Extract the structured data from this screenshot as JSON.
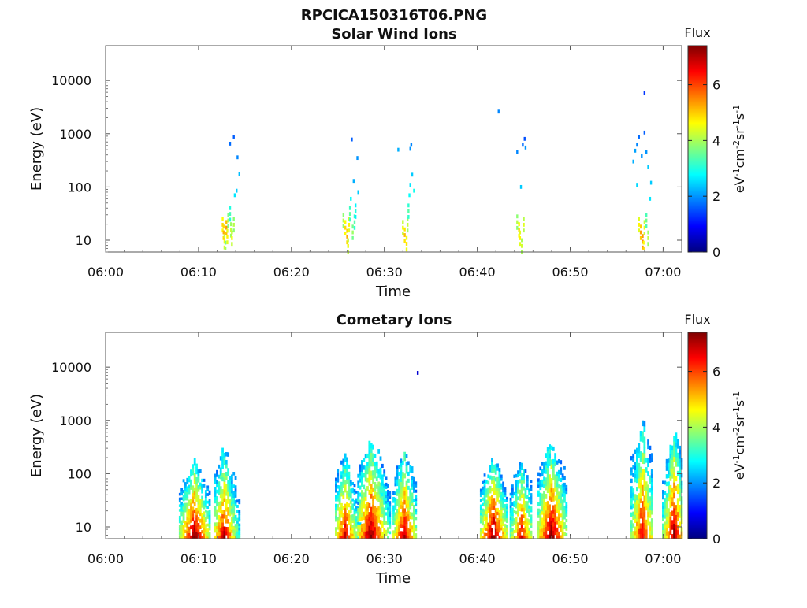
{
  "figure_title": "RPCICA150316T06.PNG",
  "chart_data": [
    {
      "type": "heatmap",
      "title": "Solar Wind Ions",
      "xlabel": "Time",
      "ylabel": "Energy (eV)",
      "xlim": [
        "06:00",
        "07:02"
      ],
      "ylim": [
        6,
        45000
      ],
      "yscale": "log",
      "x_ticks": [
        "06:00",
        "06:10",
        "06:20",
        "06:30",
        "06:40",
        "06:50",
        "07:00"
      ],
      "y_ticks": [
        "10",
        "100",
        "1000",
        "10000"
      ],
      "colorbar": {
        "label": "Flux",
        "unit": "eV-1cm-2sr-1s-1",
        "range": [
          0,
          7.4
        ],
        "ticks": [
          "0",
          "2",
          "4",
          "6"
        ],
        "colormap": "jet"
      },
      "points": [
        {
          "t": 12.6,
          "e": 25,
          "v": 4.6
        },
        {
          "t": 12.7,
          "e": 18,
          "v": 4.9
        },
        {
          "t": 12.8,
          "e": 12,
          "v": 4.3
        },
        {
          "t": 12.9,
          "e": 9,
          "v": 3.6
        },
        {
          "t": 13.0,
          "e": 22,
          "v": 5.1
        },
        {
          "t": 13.1,
          "e": 15,
          "v": 4.4
        },
        {
          "t": 13.2,
          "e": 30,
          "v": 3.7
        },
        {
          "t": 13.4,
          "e": 40,
          "v": 3.0
        },
        {
          "t": 13.5,
          "e": 20,
          "v": 3.9
        },
        {
          "t": 13.6,
          "e": 14,
          "v": 4.2
        },
        {
          "t": 13.8,
          "e": 25,
          "v": 3.8
        },
        {
          "t": 13.9,
          "e": 70,
          "v": 2.6
        },
        {
          "t": 14.1,
          "e": 85,
          "v": 2.4
        },
        {
          "t": 13.4,
          "e": 650,
          "v": 1.7
        },
        {
          "t": 13.8,
          "e": 880,
          "v": 1.6
        },
        {
          "t": 14.2,
          "e": 360,
          "v": 1.9
        },
        {
          "t": 14.4,
          "e": 175,
          "v": 2.3
        },
        {
          "t": 25.6,
          "e": 30,
          "v": 3.8
        },
        {
          "t": 25.8,
          "e": 22,
          "v": 4.6
        },
        {
          "t": 26.0,
          "e": 15,
          "v": 4.9
        },
        {
          "t": 26.1,
          "e": 10,
          "v": 4.2
        },
        {
          "t": 26.2,
          "e": 25,
          "v": 4.4
        },
        {
          "t": 26.3,
          "e": 40,
          "v": 3.2
        },
        {
          "t": 26.4,
          "e": 60,
          "v": 2.8
        },
        {
          "t": 26.6,
          "e": 18,
          "v": 3.6
        },
        {
          "t": 26.8,
          "e": 28,
          "v": 3.1
        },
        {
          "t": 26.9,
          "e": 45,
          "v": 2.7
        },
        {
          "t": 26.5,
          "e": 780,
          "v": 1.6
        },
        {
          "t": 26.7,
          "e": 130,
          "v": 2.2
        },
        {
          "t": 27.1,
          "e": 350,
          "v": 2.0
        },
        {
          "t": 27.2,
          "e": 80,
          "v": 2.4
        },
        {
          "t": 32.0,
          "e": 22,
          "v": 4.2
        },
        {
          "t": 32.2,
          "e": 16,
          "v": 4.8
        },
        {
          "t": 32.4,
          "e": 11,
          "v": 4.5
        },
        {
          "t": 32.5,
          "e": 25,
          "v": 3.9
        },
        {
          "t": 32.6,
          "e": 45,
          "v": 3.1
        },
        {
          "t": 32.7,
          "e": 70,
          "v": 2.8
        },
        {
          "t": 32.8,
          "e": 110,
          "v": 2.6
        },
        {
          "t": 33.0,
          "e": 170,
          "v": 2.4
        },
        {
          "t": 33.2,
          "e": 85,
          "v": 2.9
        },
        {
          "t": 32.8,
          "e": 520,
          "v": 2.0
        },
        {
          "t": 32.9,
          "e": 620,
          "v": 1.9
        },
        {
          "t": 31.5,
          "e": 500,
          "v": 2.2
        },
        {
          "t": 42.3,
          "e": 2600,
          "v": 1.9
        },
        {
          "t": 44.3,
          "e": 28,
          "v": 3.8
        },
        {
          "t": 44.5,
          "e": 20,
          "v": 4.6
        },
        {
          "t": 44.6,
          "e": 14,
          "v": 4.4
        },
        {
          "t": 44.8,
          "e": 10,
          "v": 4.0
        },
        {
          "t": 45.0,
          "e": 25,
          "v": 4.1
        },
        {
          "t": 44.7,
          "e": 100,
          "v": 2.4
        },
        {
          "t": 44.3,
          "e": 450,
          "v": 1.9
        },
        {
          "t": 44.9,
          "e": 620,
          "v": 1.7
        },
        {
          "t": 45.1,
          "e": 800,
          "v": 1.5
        },
        {
          "t": 45.2,
          "e": 550,
          "v": 2.0
        },
        {
          "t": 57.4,
          "e": 25,
          "v": 4.4
        },
        {
          "t": 57.6,
          "e": 18,
          "v": 5.0
        },
        {
          "t": 57.8,
          "e": 12,
          "v": 5.4
        },
        {
          "t": 57.9,
          "e": 9,
          "v": 4.6
        },
        {
          "t": 58.0,
          "e": 22,
          "v": 4.2
        },
        {
          "t": 58.2,
          "e": 30,
          "v": 3.3
        },
        {
          "t": 58.4,
          "e": 14,
          "v": 3.9
        },
        {
          "t": 58.6,
          "e": 60,
          "v": 2.6
        },
        {
          "t": 58.7,
          "e": 120,
          "v": 2.4
        },
        {
          "t": 56.8,
          "e": 300,
          "v": 2.2
        },
        {
          "t": 57.0,
          "e": 480,
          "v": 2.1
        },
        {
          "t": 57.2,
          "e": 620,
          "v": 1.9
        },
        {
          "t": 57.4,
          "e": 880,
          "v": 1.7
        },
        {
          "t": 57.7,
          "e": 380,
          "v": 2.0
        },
        {
          "t": 58.0,
          "e": 1050,
          "v": 1.6
        },
        {
          "t": 58.2,
          "e": 460,
          "v": 2.0
        },
        {
          "t": 58.4,
          "e": 240,
          "v": 2.4
        },
        {
          "t": 57.2,
          "e": 110,
          "v": 2.5
        },
        {
          "t": 58.0,
          "e": 5900,
          "v": 1.3
        }
      ]
    },
    {
      "type": "heatmap",
      "title": "Cometary Ions",
      "xlabel": "Time",
      "ylabel": "Energy (eV)",
      "xlim": [
        "06:00",
        "07:02"
      ],
      "ylim": [
        6,
        45000
      ],
      "yscale": "log",
      "x_ticks": [
        "06:00",
        "06:10",
        "06:20",
        "06:30",
        "06:40",
        "06:50",
        "07:00"
      ],
      "y_ticks": [
        "10",
        "100",
        "1000",
        "10000"
      ],
      "colorbar": {
        "label": "Flux",
        "unit": "eV-1cm-2sr-1s-1",
        "range": [
          0,
          7.4
        ],
        "ticks": [
          "0",
          "2",
          "4",
          "6"
        ],
        "colormap": "jet"
      },
      "bursts": [
        {
          "t0": 8.0,
          "t1": 11.2,
          "peak": 9.6,
          "emax": 200,
          "v": 7.2
        },
        {
          "t0": 11.8,
          "t1": 14.4,
          "peak": 12.8,
          "emax": 330,
          "v": 6.6
        },
        {
          "t0": 24.8,
          "t1": 27.4,
          "peak": 25.8,
          "emax": 220,
          "v": 6.5
        },
        {
          "t0": 27.2,
          "t1": 30.6,
          "peak": 28.6,
          "emax": 500,
          "v": 7.0
        },
        {
          "t0": 31.0,
          "t1": 33.6,
          "peak": 32.2,
          "emax": 300,
          "v": 6.8
        },
        {
          "t0": 40.4,
          "t1": 43.4,
          "peak": 41.8,
          "emax": 210,
          "v": 7.2
        },
        {
          "t0": 43.6,
          "t1": 46.0,
          "peak": 44.8,
          "emax": 200,
          "v": 6.4
        },
        {
          "t0": 46.6,
          "t1": 49.8,
          "peak": 48.0,
          "emax": 420,
          "v": 7.1
        },
        {
          "t0": 56.6,
          "t1": 59.0,
          "peak": 57.8,
          "emax": 1100,
          "v": 6.6
        },
        {
          "t0": 60.0,
          "t1": 62.2,
          "peak": 61.2,
          "emax": 650,
          "v": 7.0
        }
      ],
      "points": [
        {
          "t": 33.6,
          "e": 7800,
          "v": 0.6
        }
      ]
    }
  ]
}
